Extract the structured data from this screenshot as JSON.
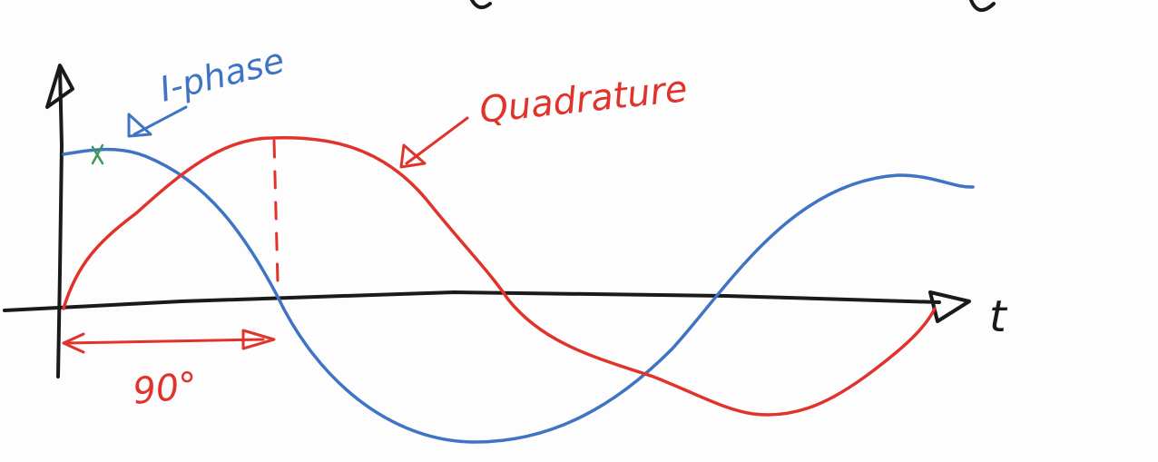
{
  "labels": {
    "in_phase": "I-phase",
    "quadrature": "Quadrature",
    "time_axis": "t",
    "phase_shift": "90°"
  },
  "colors": {
    "axes": "#1a1a1a",
    "in_phase": "#3f74c4",
    "quadrature": "#e0332b",
    "marker": "#3a9a5a"
  }
}
